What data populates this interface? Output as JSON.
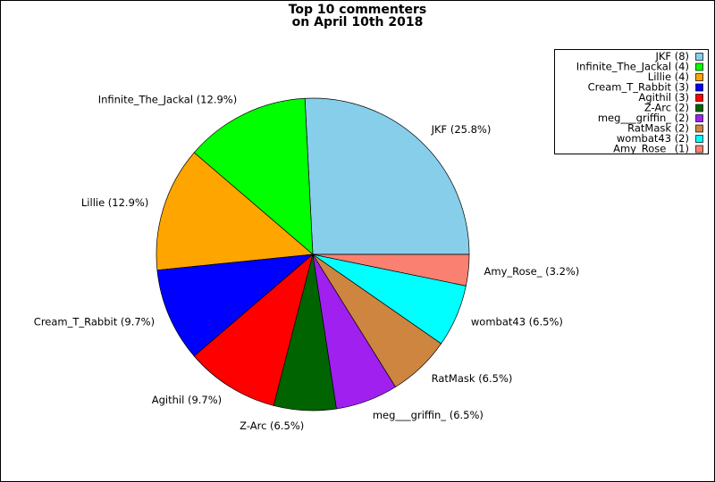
{
  "chart_data": {
    "type": "pie",
    "title": [
      "Top 10 commenters",
      "on April 10th 2018"
    ],
    "categories": [
      "JKF",
      "Infinite_The_Jackal",
      "Lillie",
      "Cream_T_Rabbit",
      "Agithil",
      "Z-Arc",
      "meg___griffin_",
      "RatMask",
      "wombat43",
      "Amy_Rose_"
    ],
    "values": [
      8,
      4,
      4,
      3,
      3,
      2,
      2,
      2,
      2,
      1
    ],
    "value_labels": [
      "JKF (8)",
      "Infinite_The_Jackal (4)",
      "Lillie (4)",
      "Cream_T_Rabbit (3)",
      "Agithil (3)",
      "Z-Arc (2)",
      "meg___griffin_ (2)",
      "RatMask (2)",
      "wombat43 (2)",
      "Amy_Rose_ (1)"
    ],
    "labels": [
      "JKF (25.8%)",
      "Infinite_The_Jackal (12.9%)",
      "Lillie (12.9%)",
      "Cream_T_Rabbit (9.7%)",
      "Agithil (9.7%)",
      "Z-Arc (6.5%)",
      "meg___griffin_ (6.5%)",
      "RatMask (6.5%)",
      "wombat43 (6.5%)",
      "Amy_Rose_ (3.2%)"
    ],
    "colors": [
      "#87ceeb",
      "#00ff00",
      "#ffa500",
      "#0000ff",
      "#ff0000",
      "#006400",
      "#a020f0",
      "#cd853f",
      "#00ffff",
      "#fa8072"
    ],
    "legend": "upper right"
  }
}
